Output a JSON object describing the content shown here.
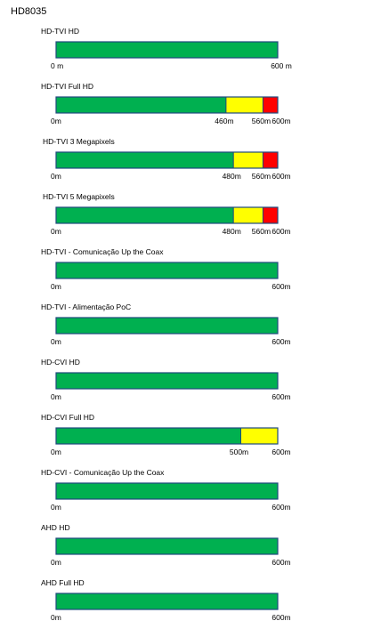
{
  "page": {
    "title": "HD8035"
  },
  "colors": {
    "green": "#00b050",
    "yellow": "#ffff00",
    "red": "#ff0000",
    "border": "#1f497d"
  },
  "chart_data": [
    {
      "type": "bar",
      "title": "HD-TVI HD",
      "unit": "m",
      "max": 600,
      "segments": [
        {
          "end": 600,
          "color": "green"
        }
      ],
      "tick_labels": [
        {
          "value": 0,
          "label": "0 m"
        },
        {
          "value": 600,
          "label": "600 m"
        }
      ]
    },
    {
      "type": "bar",
      "title": "HD-TVI Full HD",
      "unit": "m",
      "max": 600,
      "segments": [
        {
          "end": 460,
          "color": "green"
        },
        {
          "end": 560,
          "color": "yellow"
        },
        {
          "end": 600,
          "color": "red"
        }
      ],
      "tick_labels": [
        {
          "value": 0,
          "label": "0m"
        },
        {
          "value": 460,
          "label": "460m"
        },
        {
          "value": 560,
          "label": "560m"
        },
        {
          "value": 600,
          "label": "600m"
        }
      ]
    },
    {
      "type": "bar",
      "title": "HD-TVI 3 Megapixels",
      "unit": "m",
      "max": 600,
      "segments": [
        {
          "end": 480,
          "color": "green"
        },
        {
          "end": 560,
          "color": "yellow"
        },
        {
          "end": 600,
          "color": "red"
        }
      ],
      "tick_labels": [
        {
          "value": 0,
          "label": "0m"
        },
        {
          "value": 480,
          "label": "480m"
        },
        {
          "value": 560,
          "label": "560m"
        },
        {
          "value": 600,
          "label": "600m"
        }
      ]
    },
    {
      "type": "bar",
      "title": "HD-TVI 5 Megapixels",
      "unit": "m",
      "max": 600,
      "segments": [
        {
          "end": 480,
          "color": "green"
        },
        {
          "end": 560,
          "color": "yellow"
        },
        {
          "end": 600,
          "color": "red"
        }
      ],
      "tick_labels": [
        {
          "value": 0,
          "label": "0m"
        },
        {
          "value": 480,
          "label": "480m"
        },
        {
          "value": 560,
          "label": "560m"
        },
        {
          "value": 600,
          "label": "600m"
        }
      ]
    },
    {
      "type": "bar",
      "title": "HD-TVI - Comunicação Up the Coax",
      "unit": "m",
      "max": 600,
      "segments": [
        {
          "end": 600,
          "color": "green"
        }
      ],
      "tick_labels": [
        {
          "value": 0,
          "label": "0m"
        },
        {
          "value": 600,
          "label": "600m"
        }
      ]
    },
    {
      "type": "bar",
      "title": "HD-TVI - Alimentação PoC",
      "unit": "m",
      "max": 600,
      "segments": [
        {
          "end": 600,
          "color": "green"
        }
      ],
      "tick_labels": [
        {
          "value": 0,
          "label": "0m"
        },
        {
          "value": 600,
          "label": "600m"
        }
      ]
    },
    {
      "type": "bar",
      "title": "HD-CVI HD",
      "unit": "m",
      "max": 600,
      "segments": [
        {
          "end": 600,
          "color": "green"
        }
      ],
      "tick_labels": [
        {
          "value": 0,
          "label": "0m"
        },
        {
          "value": 600,
          "label": "600m"
        }
      ]
    },
    {
      "type": "bar",
      "title": "HD-CVI  Full HD",
      "unit": "m",
      "max": 600,
      "segments": [
        {
          "end": 500,
          "color": "green"
        },
        {
          "end": 600,
          "color": "yellow"
        }
      ],
      "tick_labels": [
        {
          "value": 0,
          "label": "0m"
        },
        {
          "value": 500,
          "label": "500m"
        },
        {
          "value": 600,
          "label": "600m"
        }
      ]
    },
    {
      "type": "bar",
      "title": "HD-CVI - Comunicação Up the Coax",
      "unit": "m",
      "max": 600,
      "segments": [
        {
          "end": 600,
          "color": "green"
        }
      ],
      "tick_labels": [
        {
          "value": 0,
          "label": "0m"
        },
        {
          "value": 600,
          "label": "600m"
        }
      ]
    },
    {
      "type": "bar",
      "title": "AHD HD",
      "unit": "m",
      "max": 600,
      "segments": [
        {
          "end": 600,
          "color": "green"
        }
      ],
      "tick_labels": [
        {
          "value": 0,
          "label": "0m"
        },
        {
          "value": 600,
          "label": "600m"
        }
      ]
    },
    {
      "type": "bar",
      "title": "AHD Full HD",
      "unit": "m",
      "max": 600,
      "segments": [
        {
          "end": 600,
          "color": "green"
        }
      ],
      "tick_labels": [
        {
          "value": 0,
          "label": "0m"
        },
        {
          "value": 600,
          "label": "600m"
        }
      ]
    }
  ]
}
